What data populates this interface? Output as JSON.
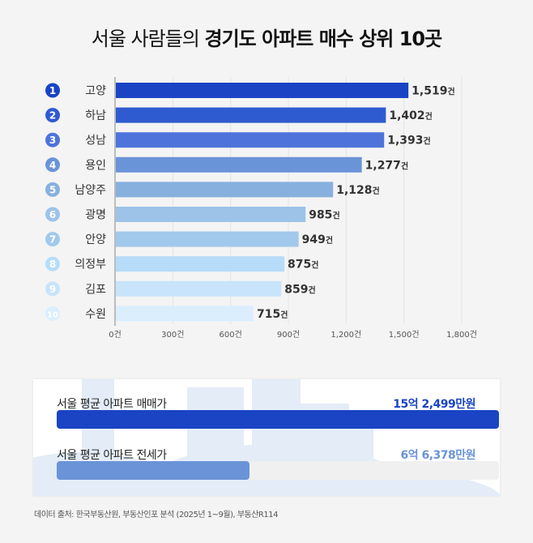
{
  "title": {
    "normal": "서울 사람들의 ",
    "bold": "경기도 아파트 매수 상위 10곳"
  },
  "chart_data": {
    "type": "bar",
    "orientation": "horizontal",
    "categories": [
      "고양",
      "하남",
      "성남",
      "용인",
      "남양주",
      "광명",
      "안양",
      "의정부",
      "김포",
      "수원"
    ],
    "ranks": [
      "1",
      "2",
      "3",
      "4",
      "5",
      "6",
      "7",
      "8",
      "9",
      "10"
    ],
    "values": [
      1519,
      1402,
      1393,
      1277,
      1128,
      985,
      949,
      875,
      859,
      715
    ],
    "value_labels": [
      "1,519",
      "1,402",
      "1,393",
      "1,277",
      "1,128",
      "985",
      "949",
      "875",
      "859",
      "715"
    ],
    "unit": "건",
    "xlim": [
      0,
      1800
    ],
    "xticks": [
      0,
      300,
      600,
      900,
      1200,
      1500,
      1800
    ],
    "xtick_labels": [
      "0건",
      "300건",
      "600건",
      "900건",
      "1,200건",
      "1,500건",
      "1,800건"
    ],
    "grid": true,
    "colors": [
      "#1a44c4",
      "#2f5bd0",
      "#4e74dc",
      "#6a94d8",
      "#87b0de",
      "#9dc3e9",
      "#a1c9ec",
      "#b6dcf9",
      "#c7e4fb",
      "#dbeefd"
    ]
  },
  "summary": {
    "items": [
      {
        "label": "서울 평균 아파트 매매가",
        "value": "15억 2,499만원",
        "fraction": 1.0,
        "color": "#1a44c4"
      },
      {
        "label": "서울 평균 아파트 전세가",
        "value": "6억 6,378만원",
        "fraction": 0.435,
        "color": "#6a93d8"
      }
    ]
  },
  "source": "데이터 출처: 한국부동산원, 부동산인포 분석 (2025년 1~9월), 부동산R114"
}
